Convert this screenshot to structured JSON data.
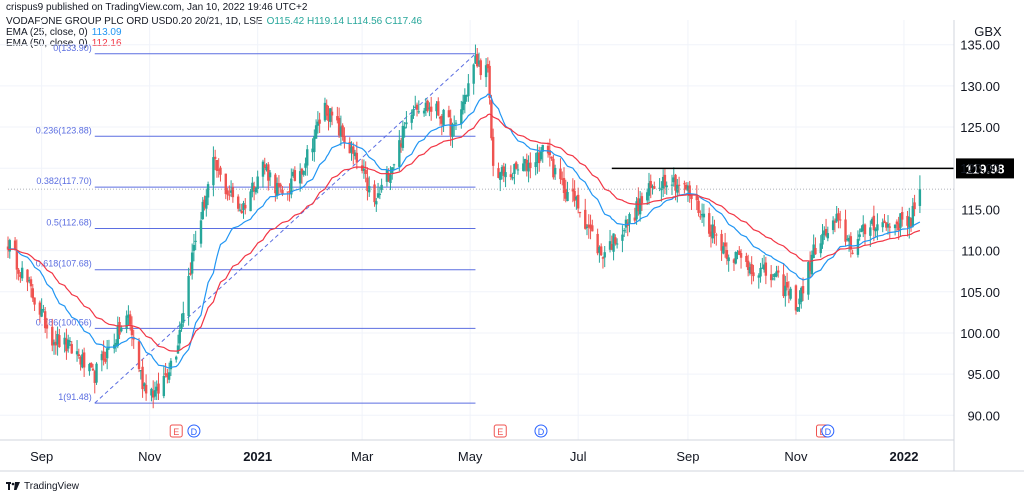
{
  "header": {
    "publish_line": "crispus9 published on TradingView.com, Jan 10, 2022 19:46 UTC+2",
    "symbol": "VODAFONE GROUP PLC ORD USD0.20 20/21, 1D, LSE",
    "ohlc": "O115.42 H119.14 L114.56 C117.46",
    "ema25_label": "EMA (25, close, 0)",
    "ema25_value": "113.09",
    "ema50_label": "EMA (50, close, 0)",
    "ema50_value": "112.16"
  },
  "footer": {
    "brand": "TradingView"
  },
  "colors": {
    "up": "#26a69a",
    "down": "#ef5350",
    "ema25": "#2196f3",
    "ema50": "#f23645",
    "fib": "#5b6ee1",
    "grid": "#f0f3fa",
    "text": "#131722",
    "event_e": "#ef5350",
    "event_d": "#2962ff"
  },
  "chart_data": {
    "type": "candlestick",
    "currency": "GBX",
    "ylim": [
      87,
      138
    ],
    "y_ticks": [
      "90.00",
      "95.00",
      "100.00",
      "105.00",
      "110.00",
      "115.00",
      "120.00",
      "125.00",
      "130.00",
      "135.00"
    ],
    "x_ticks": [
      "Sep",
      "Nov",
      "2021",
      "Mar",
      "May",
      "Jul",
      "Sep",
      "Nov",
      "2022"
    ],
    "x_range": [
      "2020-08-13",
      "2022-01-27"
    ],
    "horizontal_level": {
      "value": 119.98,
      "label": "119.98",
      "from": "2021-07-20",
      "to": "2022-01-27"
    },
    "fibonacci": {
      "from": "2020-10-01",
      "to": "2021-05-04",
      "levels": [
        {
          "ratio": "0",
          "label": "0(133.90)",
          "value": 133.9
        },
        {
          "ratio": "0.236",
          "label": "0.236(123.88)",
          "value": 123.88
        },
        {
          "ratio": "0.382",
          "label": "0.382(117.70)",
          "value": 117.7
        },
        {
          "ratio": "0.5",
          "label": "0.5(112.68)",
          "value": 112.68
        },
        {
          "ratio": "0.618",
          "label": "0.618(107.68)",
          "value": 107.68
        },
        {
          "ratio": "0.786",
          "label": "0.786(100.56)",
          "value": 100.56
        },
        {
          "ratio": "1",
          "label": "1(91.48)",
          "value": 91.48
        }
      ]
    },
    "close_anchors": [
      [
        "2020-08-13",
        111.0
      ],
      [
        "2020-08-25",
        105.5
      ],
      [
        "2020-09-07",
        99.5
      ],
      [
        "2020-09-21",
        97.5
      ],
      [
        "2020-09-30",
        94.5
      ],
      [
        "2020-10-06",
        97.0
      ],
      [
        "2020-10-20",
        102.0
      ],
      [
        "2020-10-28",
        94.0
      ],
      [
        "2020-11-05",
        92.5
      ],
      [
        "2020-11-16",
        98.0
      ],
      [
        "2020-11-26",
        110.5
      ],
      [
        "2020-12-07",
        120.5
      ],
      [
        "2020-12-14",
        117.5
      ],
      [
        "2020-12-23",
        115.0
      ],
      [
        "2021-01-04",
        120.5
      ],
      [
        "2021-01-15",
        116.5
      ],
      [
        "2021-01-27",
        120.5
      ],
      [
        "2021-02-08",
        127.5
      ],
      [
        "2021-02-19",
        123.5
      ],
      [
        "2021-03-02",
        119.0
      ],
      [
        "2021-03-08",
        115.5
      ],
      [
        "2021-03-19",
        121.0
      ],
      [
        "2021-03-30",
        128.0
      ],
      [
        "2021-04-12",
        127.0
      ],
      [
        "2021-04-22",
        124.5
      ],
      [
        "2021-05-04",
        133.0
      ],
      [
        "2021-05-11",
        131.5
      ],
      [
        "2021-05-14",
        120.0
      ],
      [
        "2021-05-21",
        119.0
      ],
      [
        "2021-06-03",
        120.5
      ],
      [
        "2021-06-14",
        122.5
      ],
      [
        "2021-06-18",
        119.0
      ],
      [
        "2021-07-01",
        115.5
      ],
      [
        "2021-07-14",
        109.5
      ],
      [
        "2021-07-28",
        113.0
      ],
      [
        "2021-08-09",
        117.0
      ],
      [
        "2021-08-20",
        119.0
      ],
      [
        "2021-08-31",
        117.5
      ],
      [
        "2021-09-13",
        113.0
      ],
      [
        "2021-09-23",
        110.0
      ],
      [
        "2021-10-07",
        108.0
      ],
      [
        "2021-10-21",
        106.5
      ],
      [
        "2021-11-02",
        103.5
      ],
      [
        "2021-11-12",
        110.5
      ],
      [
        "2021-11-24",
        113.5
      ],
      [
        "2021-12-03",
        110.5
      ],
      [
        "2021-12-14",
        113.5
      ],
      [
        "2021-12-23",
        113.0
      ],
      [
        "2022-01-05",
        114.0
      ],
      [
        "2022-01-10",
        117.46
      ]
    ],
    "events": [
      {
        "type": "E",
        "date": "2020-11-16"
      },
      {
        "type": "D",
        "date": "2020-11-26"
      },
      {
        "type": "E",
        "date": "2021-05-18"
      },
      {
        "type": "D",
        "date": "2021-06-10"
      },
      {
        "type": "E",
        "date": "2021-11-16"
      },
      {
        "type": "D",
        "date": "2021-11-19"
      }
    ]
  }
}
